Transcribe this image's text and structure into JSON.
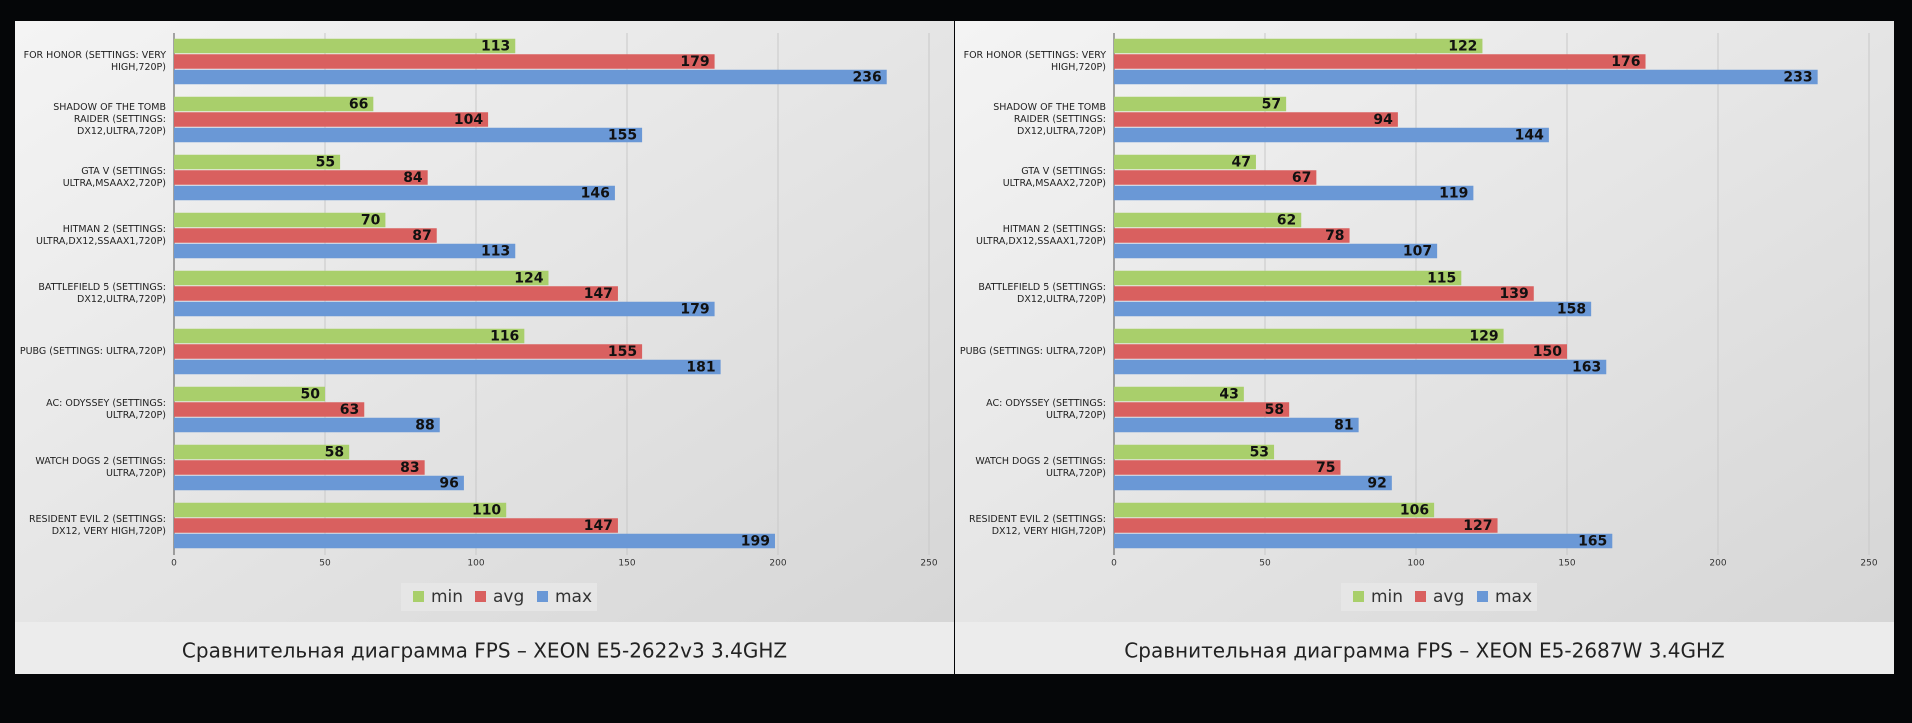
{
  "chart_data": [
    {
      "type": "bar",
      "title": "Сравнительная диаграмма FPS – XEON E5-2622v3 3.4GHZ",
      "categories": [
        "FOR HONOR (SETTINGS: VERY HIGH,720P)",
        "SHADOW OF THE TOMB RAIDER (SETTINGS: DX12,ULTRA,720P)",
        "GTA V (SETTINGS: ULTRA,MSAAX2,720P)",
        "HITMAN 2 (SETTINGS: ULTRA,DX12,SSAAX1,720P)",
        "BATTLEFIELD 5 (SETTINGS: DX12,ULTRA,720P)",
        "PUBG (SETTINGS: ULTRA,720P)",
        "AC: ODYSSEY (SETTINGS: ULTRA,720P)",
        "WATCH DOGS 2  (SETTINGS: ULTRA,720P)",
        "RESIDENT EVIL 2 (SETTINGS: DX12, VERY HIGH,720P)"
      ],
      "series": [
        {
          "name": "min",
          "color": "#a9cf6b",
          "values": [
            113,
            66,
            55,
            70,
            124,
            116,
            50,
            58,
            110
          ]
        },
        {
          "name": "avg",
          "color": "#d9605f",
          "values": [
            179,
            104,
            84,
            87,
            147,
            155,
            63,
            83,
            147
          ]
        },
        {
          "name": "max",
          "color": "#6a98d6",
          "values": [
            236,
            155,
            146,
            113,
            179,
            181,
            88,
            96,
            199
          ]
        }
      ],
      "xlim": [
        0,
        250
      ],
      "xticks": [
        0,
        50,
        100,
        150,
        200,
        250
      ],
      "grid": true,
      "legend": "bottom"
    },
    {
      "type": "bar",
      "title": "Сравнительная диаграмма FPS – XEON E5-2687W 3.4GHZ",
      "categories": [
        "FOR HONOR (SETTINGS: VERY HIGH,720P)",
        "SHADOW OF THE TOMB RAIDER (SETTINGS: DX12,ULTRA,720P)",
        "GTA V (SETTINGS: ULTRA,MSAAX2,720P)",
        "HITMAN 2 (SETTINGS: ULTRA,DX12,SSAAX1,720P)",
        "BATTLEFIELD 5 (SETTINGS: DX12,ULTRA,720P)",
        "PUBG (SETTINGS: ULTRA,720P)",
        "AC: ODYSSEY (SETTINGS: ULTRA,720P)",
        "WATCH DOGS 2  (SETTINGS: ULTRA,720P)",
        "RESIDENT EVIL 2 (SETTINGS: DX12, VERY HIGH,720P)"
      ],
      "series": [
        {
          "name": "min",
          "color": "#a9cf6b",
          "values": [
            122,
            57,
            47,
            62,
            115,
            129,
            43,
            53,
            106
          ]
        },
        {
          "name": "avg",
          "color": "#d9605f",
          "values": [
            176,
            94,
            67,
            78,
            139,
            150,
            58,
            75,
            127
          ]
        },
        {
          "name": "max",
          "color": "#6a98d6",
          "values": [
            233,
            144,
            119,
            107,
            158,
            163,
            81,
            92,
            165
          ]
        }
      ],
      "xlim": [
        0,
        250
      ],
      "xticks": [
        0,
        50,
        100,
        150,
        200,
        250
      ],
      "grid": true,
      "legend": "bottom"
    }
  ]
}
